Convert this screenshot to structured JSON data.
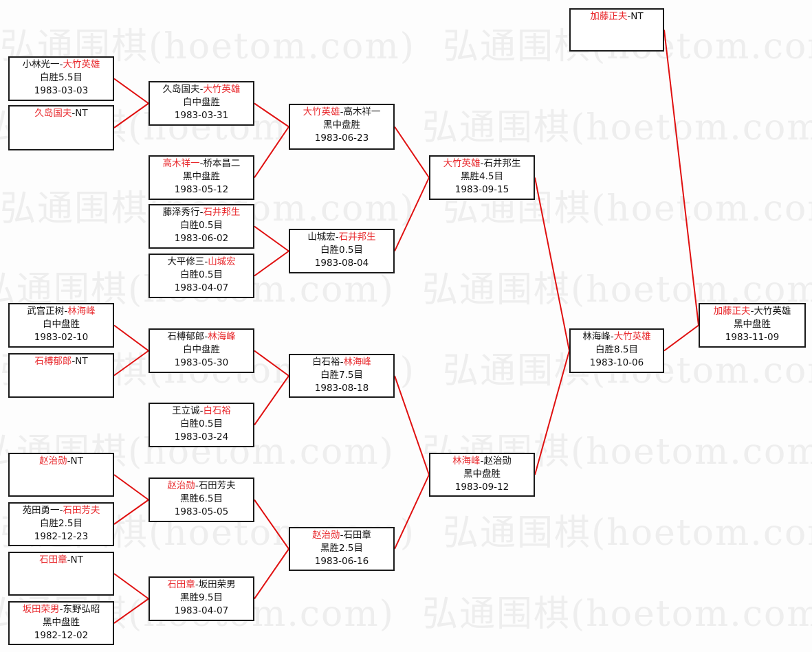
{
  "watermark": "弘通围棋(hoetom.com)",
  "colors": {
    "winner": "#e8282c",
    "connector": "#e01010",
    "border": "#1a1a1a"
  },
  "separator": "-",
  "matches": [
    {
      "id": "r1a",
      "p1": "小林光一",
      "p2": "大竹英雄",
      "winner": 2,
      "result": "白胜5.5目",
      "date": "1983-03-03"
    },
    {
      "id": "r1b",
      "p1": "久岛国夫",
      "p2": "NT",
      "winner": 1,
      "result": "",
      "date": ""
    },
    {
      "id": "r1c",
      "p1": "武宫正树",
      "p2": "林海峰",
      "winner": 2,
      "result": "白中盘胜",
      "date": "1983-02-10"
    },
    {
      "id": "r1d",
      "p1": "石榑郁郎",
      "p2": "NT",
      "winner": 1,
      "result": "",
      "date": ""
    },
    {
      "id": "r1e",
      "p1": "赵治勋",
      "p2": "NT",
      "winner": 1,
      "result": "",
      "date": ""
    },
    {
      "id": "r1f",
      "p1": "苑田勇一",
      "p2": "石田芳夫",
      "winner": 2,
      "result": "白胜2.5目",
      "date": "1982-12-23"
    },
    {
      "id": "r1g",
      "p1": "石田章",
      "p2": "NT",
      "winner": 1,
      "result": "",
      "date": ""
    },
    {
      "id": "r1h",
      "p1": "坂田荣男",
      "p2": "东野弘昭",
      "winner": 1,
      "result": "黑中盘胜",
      "date": "1982-12-02"
    },
    {
      "id": "r2a",
      "p1": "久岛国夫",
      "p2": "大竹英雄",
      "winner": 2,
      "result": "白中盘胜",
      "date": "1983-03-31"
    },
    {
      "id": "r2b",
      "p1": "高木祥一",
      "p2": "桥本昌二",
      "winner": 1,
      "result": "黑中盘胜",
      "date": "1983-05-12"
    },
    {
      "id": "r2c",
      "p1": "藤泽秀行",
      "p2": "石井邦生",
      "winner": 2,
      "result": "白胜0.5目",
      "date": "1983-06-02"
    },
    {
      "id": "r2d",
      "p1": "大平修三",
      "p2": "山城宏",
      "winner": 2,
      "result": "白胜0.5目",
      "date": "1983-04-07"
    },
    {
      "id": "r2e",
      "p1": "石榑郁郎",
      "p2": "林海峰",
      "winner": 2,
      "result": "白中盘胜",
      "date": "1983-05-30"
    },
    {
      "id": "r2f",
      "p1": "王立诚",
      "p2": "白石裕",
      "winner": 2,
      "result": "白胜0.5目",
      "date": "1983-03-24"
    },
    {
      "id": "r2g",
      "p1": "赵治勋",
      "p2": "石田芳夫",
      "winner": 1,
      "result": "黑胜6.5目",
      "date": "1983-05-05"
    },
    {
      "id": "r2h",
      "p1": "石田章",
      "p2": "坂田荣男",
      "winner": 1,
      "result": "黑胜9.5目",
      "date": "1983-04-07"
    },
    {
      "id": "r3a",
      "p1": "大竹英雄",
      "p2": "高木祥一",
      "winner": 1,
      "result": "黑中盘胜",
      "date": "1983-06-23"
    },
    {
      "id": "r3b",
      "p1": "山城宏",
      "p2": "石井邦生",
      "winner": 2,
      "result": "白胜0.5目",
      "date": "1983-08-04"
    },
    {
      "id": "r3c",
      "p1": "白石裕",
      "p2": "林海峰",
      "winner": 2,
      "result": "白胜7.5目",
      "date": "1983-08-18"
    },
    {
      "id": "r3d",
      "p1": "赵治勋",
      "p2": "石田章",
      "winner": 1,
      "result": "黑胜2.5目",
      "date": "1983-06-16"
    },
    {
      "id": "r4a",
      "p1": "大竹英雄",
      "p2": "石井邦生",
      "winner": 1,
      "result": "黑胜4.5目",
      "date": "1983-09-15"
    },
    {
      "id": "r4b",
      "p1": "林海峰",
      "p2": "赵治勋",
      "winner": 1,
      "result": "黑中盘胜",
      "date": "1983-09-12"
    },
    {
      "id": "r5a",
      "p1": "加藤正夫",
      "p2": "NT",
      "winner": 1,
      "result": "",
      "date": ""
    },
    {
      "id": "r5b",
      "p1": "林海峰",
      "p2": "大竹英雄",
      "winner": 2,
      "result": "白胜8.5目",
      "date": "1983-10-06"
    },
    {
      "id": "final",
      "p1": "加藤正夫",
      "p2": "大竹英雄",
      "winner": 1,
      "result": "黑中盘胜",
      "date": "1983-11-09"
    }
  ]
}
